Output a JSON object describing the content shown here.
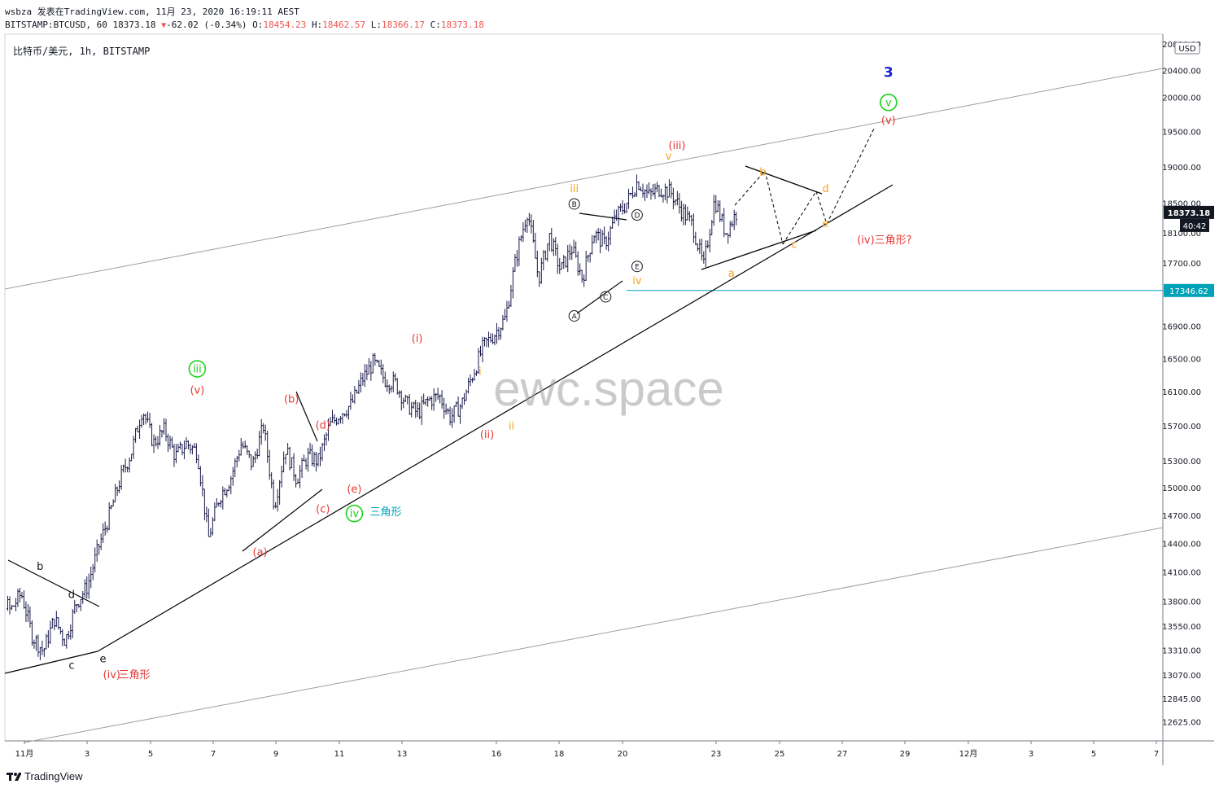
{
  "header": {
    "author": "wsbza",
    "published_on": "发表在TradingView.com,",
    "date": "11月 23, 2020 16:19:11 AEST",
    "symbol": "BITSTAMP:BTCUSD,",
    "interval": "60",
    "last": "18373.18",
    "change": "-62.02 (-0.34%)",
    "o_label": "O:",
    "o": "18454.23",
    "h_label": "H:",
    "h": "18462.57",
    "l_label": "L:",
    "l": "18366.17",
    "c_label": "C:",
    "c": "18373.18"
  },
  "legend": "比特币/美元, 1h, BITSTAMP",
  "watermark": "ewc.space",
  "footer": {
    "brand": "TradingView"
  },
  "colors": {
    "candle": "#1a1a4a",
    "price_tag": "#131722",
    "hline": "#00a2b8",
    "red": "#e53935",
    "orange": "#f4a21a",
    "green": "#1bd31b",
    "blue": "#1e22d6",
    "grey_line": "#9e9e9e"
  },
  "chart_data": {
    "type": "candlestick",
    "title": "比特币/美元, 1h, BITSTAMP",
    "currency": "USD",
    "x_axis": {
      "ticks": [
        "11月",
        "3",
        "5",
        "7",
        "9",
        "11",
        "13",
        "16",
        "18",
        "20",
        "23",
        "25",
        "27",
        "29",
        "12月",
        "3",
        "5",
        "7"
      ]
    },
    "y_axis": {
      "scale": "log",
      "range": [
        12450,
        20950
      ],
      "ticks": [
        "20800.00",
        "20400.00",
        "20000.00",
        "19500.00",
        "19000.00",
        "18500.00",
        "18100.00",
        "17700.00",
        "16900.00",
        "16500.00",
        "16100.00",
        "15700.00",
        "15300.00",
        "15000.00",
        "14700.00",
        "14400.00",
        "14100.00",
        "13800.00",
        "13550.00",
        "13310.00",
        "13070.00",
        "12845.00",
        "12625.00"
      ]
    },
    "last_price": {
      "value": 18373.18,
      "label": "18373.18",
      "countdown": "40:42"
    },
    "horizontal_line": {
      "value": 17346.62,
      "label": "17346.62"
    },
    "price_path": [
      [
        "10-31",
        13650
      ],
      [
        "11-01",
        14080
      ],
      [
        "11-01",
        13920
      ],
      [
        "11-02",
        13700
      ],
      [
        "11-02",
        13880
      ],
      [
        "11-02",
        13450
      ],
      [
        "11-03",
        13300
      ],
      [
        "11-03",
        13620
      ],
      [
        "11-03",
        13400
      ],
      [
        "11-04",
        13780
      ],
      [
        "11-04",
        13950
      ],
      [
        "11-05",
        14350
      ],
      [
        "11-05",
        14700
      ],
      [
        "11-05",
        15100
      ],
      [
        "11-06",
        15400
      ],
      [
        "11-06",
        15900
      ],
      [
        "11-06",
        15500
      ],
      [
        "11-07",
        15650
      ],
      [
        "11-07",
        15350
      ],
      [
        "11-07",
        15500
      ],
      [
        "11-08",
        15400
      ],
      [
        "11-08",
        14450
      ],
      [
        "11-08",
        14900
      ],
      [
        "11-09",
        15100
      ],
      [
        "11-09",
        15500
      ],
      [
        "11-09",
        15250
      ],
      [
        "11-10",
        15700
      ],
      [
        "11-10",
        14800
      ],
      [
        "11-10",
        15450
      ],
      [
        "11-11",
        15100
      ],
      [
        "11-11",
        15350
      ],
      [
        "11-12",
        15300
      ],
      [
        "11-12",
        15700
      ],
      [
        "11-12",
        15850
      ],
      [
        "11-13",
        15950
      ],
      [
        "11-13",
        16250
      ],
      [
        "11-13",
        16450
      ],
      [
        "11-14",
        16250
      ],
      [
        "11-14",
        16200
      ],
      [
        "11-15",
        15950
      ],
      [
        "11-15",
        15850
      ],
      [
        "11-15",
        16000
      ],
      [
        "11-16",
        16050
      ],
      [
        "11-16",
        15800
      ],
      [
        "11-16",
        15950
      ],
      [
        "11-17",
        16300
      ],
      [
        "11-17",
        16650
      ],
      [
        "11-17",
        16800
      ],
      [
        "11-18",
        17000
      ],
      [
        "11-18",
        17800
      ],
      [
        "11-18",
        18400
      ],
      [
        "11-18",
        17500
      ],
      [
        "11-19",
        18050
      ],
      [
        "11-19",
        17600
      ],
      [
        "11-19",
        17900
      ],
      [
        "11-20",
        17500
      ],
      [
        "11-20",
        18100
      ],
      [
        "11-20",
        17950
      ],
      [
        "11-21",
        18300
      ],
      [
        "11-21",
        18500
      ],
      [
        "11-21",
        18800
      ],
      [
        "11-21",
        18600
      ],
      [
        "11-22",
        18700
      ],
      [
        "11-22",
        18650
      ],
      [
        "11-22",
        18400
      ],
      [
        "11-23",
        18200
      ],
      [
        "11-23",
        17650
      ],
      [
        "11-23",
        18550
      ],
      [
        "11-23",
        18100
      ],
      [
        "11-23",
        18373
      ]
    ],
    "wave_labels": [
      {
        "text": "b",
        "date": "11-01",
        "price": 14120,
        "color": "#131722"
      },
      {
        "text": "c",
        "date": "11-02",
        "price": 13130,
        "color": "#131722"
      },
      {
        "text": "d",
        "date": "11-02",
        "price": 13830,
        "color": "#131722"
      },
      {
        "text": "e",
        "date": "11-03",
        "price": 13190,
        "color": "#131722"
      },
      {
        "text": "(iv)",
        "date": "11-03",
        "price": 13040,
        "color": "#e53935"
      },
      {
        "text": "三角形",
        "date": "11-04",
        "price": 13040,
        "color": "#e53935"
      },
      {
        "text": "iii",
        "date": "11-06",
        "price": 16330,
        "color": "#1bd31b",
        "circled": true
      },
      {
        "text": "(v)",
        "date": "11-06",
        "price": 16080,
        "color": "#e53935"
      },
      {
        "text": "(a)",
        "date": "11-08",
        "price": 14270,
        "color": "#e53935"
      },
      {
        "text": "(b)",
        "date": "11-09",
        "price": 15970,
        "color": "#e53935"
      },
      {
        "text": "(c)",
        "date": "11-10",
        "price": 14730,
        "color": "#e53935"
      },
      {
        "text": "(d)",
        "date": "11-10",
        "price": 15670,
        "color": "#e53935"
      },
      {
        "text": "(e)",
        "date": "11-11",
        "price": 14950,
        "color": "#e53935"
      },
      {
        "text": "iv",
        "date": "11-11",
        "price": 14680,
        "color": "#1bd31b",
        "circled": true
      },
      {
        "text": "三角形",
        "date": "11-12",
        "price": 14700,
        "color": "#00a2b8"
      },
      {
        "text": "(i)",
        "date": "11-13",
        "price": 16700,
        "color": "#e53935"
      },
      {
        "text": "i",
        "date": "11-15",
        "price": 16300,
        "color": "#f4a21a"
      },
      {
        "text": "(ii)",
        "date": "11-15",
        "price": 15560,
        "color": "#e53935"
      },
      {
        "text": "ii",
        "date": "11-16",
        "price": 15660,
        "color": "#f4a21a"
      },
      {
        "text": "iii",
        "date": "11-18",
        "price": 18650,
        "color": "#f4a21a"
      },
      {
        "text": "A",
        "date": "11-18",
        "price": 16990,
        "color": "#131722",
        "circled": true
      },
      {
        "text": "B",
        "date": "11-18",
        "price": 18450,
        "color": "#131722",
        "circled": true
      },
      {
        "text": "C",
        "date": "11-19",
        "price": 17230,
        "color": "#131722",
        "circled": true
      },
      {
        "text": "D",
        "date": "11-20",
        "price": 18300,
        "color": "#131722",
        "circled": true
      },
      {
        "text": "E",
        "date": "11-20",
        "price": 17620,
        "color": "#131722",
        "circled": true
      },
      {
        "text": "iv",
        "date": "11-20",
        "price": 17430,
        "color": "#f4a21a"
      },
      {
        "text": "(iii)",
        "date": "11-21",
        "price": 19250,
        "color": "#e53935"
      },
      {
        "text": "v",
        "date": "11-21",
        "price": 19100,
        "color": "#f4a21a"
      },
      {
        "text": "a",
        "date": "11-23",
        "price": 17520,
        "color": "#f4a21a"
      },
      {
        "text": "b",
        "date": "11-24",
        "price": 18880,
        "color": "#f4a21a"
      },
      {
        "text": "c",
        "date": "11-25",
        "price": 17900,
        "color": "#f4a21a"
      },
      {
        "text": "d",
        "date": "11-26",
        "price": 18650,
        "color": "#f4a21a"
      },
      {
        "text": "e",
        "date": "11-26",
        "price": 18180,
        "color": "#f4a21a"
      },
      {
        "text": "(iv)三角形?",
        "date": "11-27",
        "price": 17960,
        "color": "#e53935"
      },
      {
        "text": "3",
        "date": "11-28",
        "price": 20300,
        "color": "#1e22d6"
      },
      {
        "text": "v",
        "date": "11-28",
        "price": 19870,
        "color": "#1bd31b",
        "circled": true
      },
      {
        "text": "(v)",
        "date": "11-28",
        "price": 19610,
        "color": "#e53935"
      }
    ]
  }
}
